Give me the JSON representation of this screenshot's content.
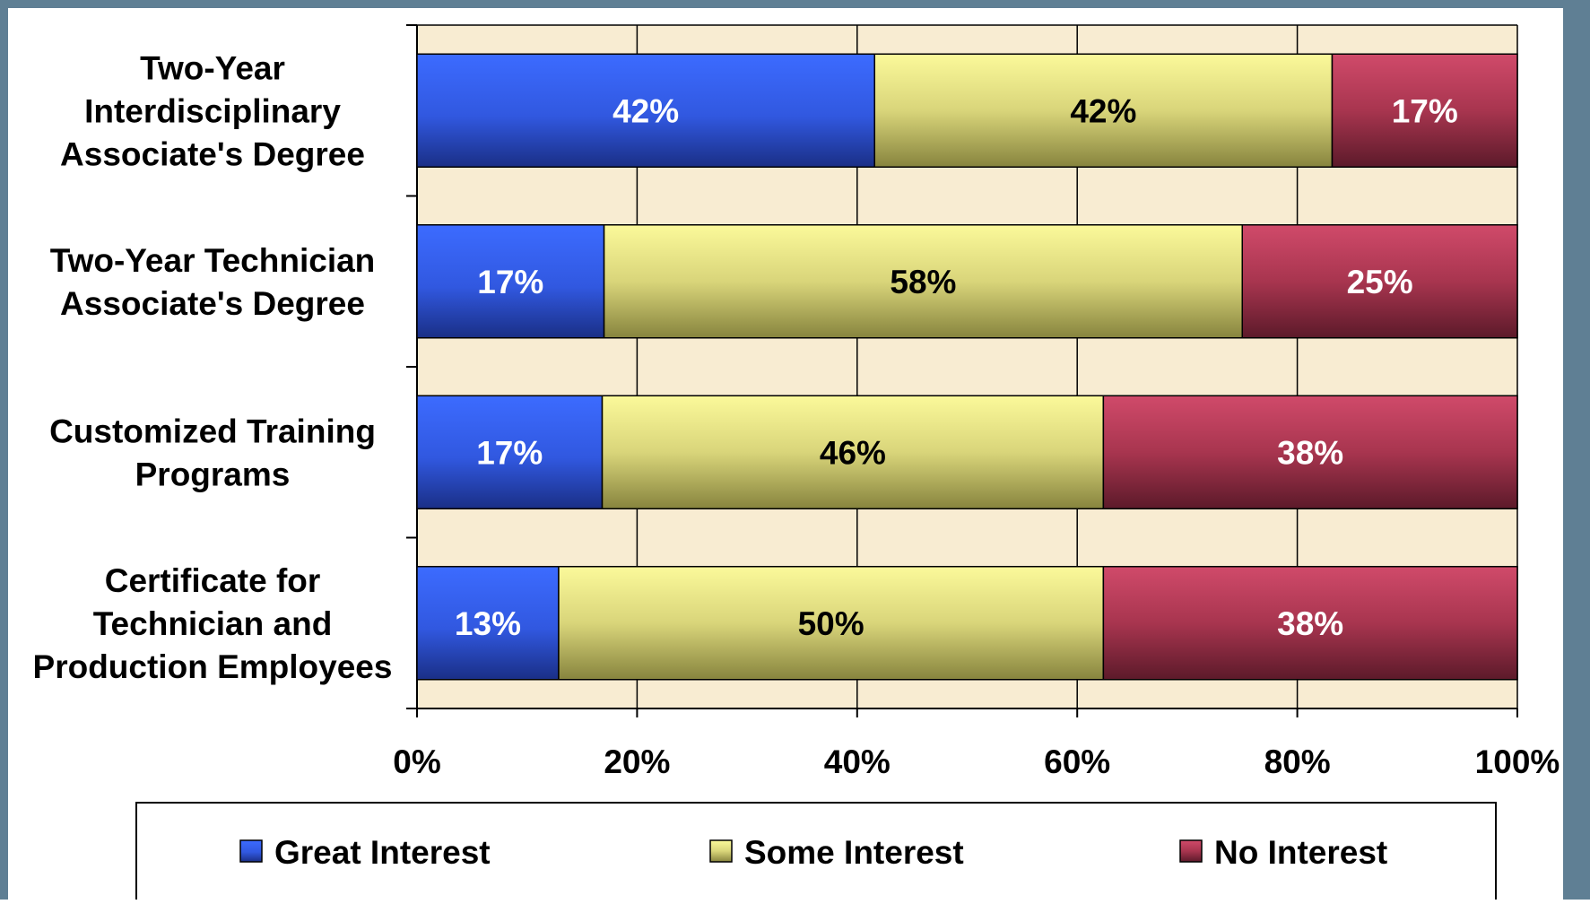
{
  "chart_data": {
    "type": "bar",
    "orientation": "horizontal",
    "stacked": "percent",
    "categories": [
      [
        "Two-Year",
        "Interdisciplinary",
        "Associate's Degree"
      ],
      [
        "Two-Year Technician",
        "Associate's Degree"
      ],
      [
        "Customized Training",
        "Programs"
      ],
      [
        "Certificate for",
        "Technician and",
        "Production Employees"
      ]
    ],
    "series": [
      {
        "name": "Great Interest",
        "values": [
          42,
          17,
          17,
          13
        ],
        "labels": [
          "42%",
          "17%",
          "17%",
          "13%"
        ],
        "color": "#3a64f0"
      },
      {
        "name": "Some Interest",
        "values": [
          42,
          58,
          46,
          50
        ],
        "labels": [
          "42%",
          "58%",
          "46%",
          "50%"
        ],
        "color": "#f6f38e"
      },
      {
        "name": "No Interest",
        "values": [
          17,
          25,
          38,
          38
        ],
        "labels": [
          "17%",
          "25%",
          "38%",
          "38%"
        ],
        "color": "#c74464"
      }
    ],
    "xlim": [
      0,
      100
    ],
    "xticks": [
      "0%",
      "20%",
      "40%",
      "60%",
      "80%",
      "100%"
    ],
    "grid": "vertical",
    "legend_position": "bottom",
    "plot_background": "#f8ecd2"
  }
}
